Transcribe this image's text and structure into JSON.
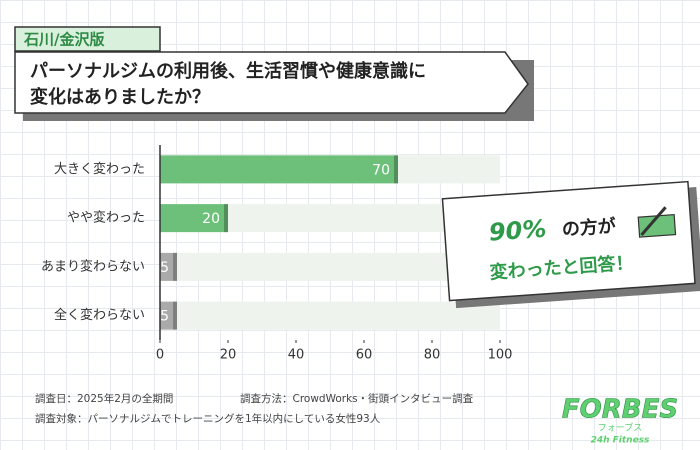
{
  "chart_data": {
    "type": "bar",
    "orientation": "horizontal",
    "tag": "石川/金沢版",
    "title_lines": [
      "パーソナルジムの利用後、生活習慣や健康意識に",
      "変化はありましたか？"
    ],
    "categories": [
      "大きく変わった",
      "やや変わった",
      "あまり変わらない",
      "全く変わらない"
    ],
    "values": [
      70,
      20,
      5,
      5
    ],
    "colors": [
      "#6cc07a",
      "#6cc07a",
      "#aaaaaa",
      "#aaaaaa"
    ],
    "xlim": [
      0,
      100
    ],
    "xticks": [
      0,
      20,
      40,
      60,
      80,
      100
    ],
    "grid": false,
    "callout": {
      "highlight": "90%",
      "line1_rest": "の方が",
      "line2": "変わったと回答！"
    },
    "notes": [
      "調査日：2025年2月の全期間",
      "調査方法：CrowdWorks・街頭インタビュー調査",
      "調査対象：パーソナルジムでトレーニングを1年以内にしている女性93人"
    ],
    "logo": {
      "main": "FORBES",
      "kana": "フォーブス",
      "sub": "24h Fitness"
    }
  }
}
